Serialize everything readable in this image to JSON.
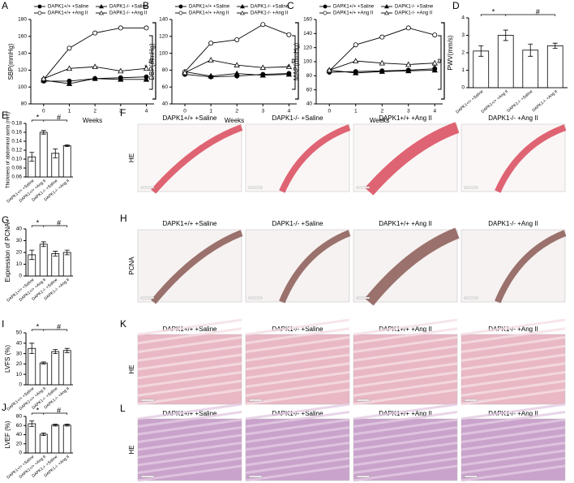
{
  "chart_data": [
    {
      "type": "line",
      "panel": "A",
      "y_label": "SBP(mmHg)",
      "x_label": "Weeks",
      "x": [
        0,
        1,
        2,
        3,
        4
      ],
      "xlim": [
        -0.5,
        4.3
      ],
      "xticks": [
        0,
        1,
        2,
        3,
        4
      ],
      "ylim": [
        80,
        180
      ],
      "yticks": [
        80,
        100,
        120,
        140,
        160,
        180
      ],
      "series": [
        {
          "name": "DAPK1+/+ +Saline",
          "color": "#000000",
          "marker": "filled-circle",
          "values": [
            107,
            107,
            110,
            111,
            112
          ]
        },
        {
          "name": "DAPK1-/- +Saline",
          "color": "#000000",
          "marker": "filled-triangle",
          "values": [
            108,
            104,
            110,
            109,
            109
          ]
        },
        {
          "name": "DAPK1+/+ +Ang II",
          "color": "#000000",
          "marker": "open-circle",
          "values": [
            109,
            146,
            164,
            170,
            170
          ]
        },
        {
          "name": "DAPK1-/- +Ang II",
          "color": "#000000",
          "marker": "open-triangle",
          "values": [
            110,
            122,
            124,
            119,
            122
          ]
        }
      ],
      "annotations": [
        "*",
        "#"
      ]
    },
    {
      "type": "line",
      "panel": "B",
      "y_label": "DBP(mmHg)",
      "x_label": "Weeks",
      "x": [
        0,
        1,
        2,
        3,
        4
      ],
      "xlim": [
        -0.5,
        4.3
      ],
      "xticks": [
        0,
        1,
        2,
        3,
        4
      ],
      "ylim": [
        40,
        140
      ],
      "yticks": [
        40,
        60,
        80,
        100,
        120,
        140
      ],
      "series": [
        {
          "name": "DAPK1+/+ +Saline",
          "color": "#000000",
          "marker": "filled-circle",
          "values": [
            75,
            72,
            73,
            75,
            76
          ]
        },
        {
          "name": "DAPK1-/- +Saline",
          "color": "#000000",
          "marker": "filled-triangle",
          "values": [
            78,
            73,
            76,
            74,
            75
          ]
        },
        {
          "name": "DAPK1+/+ +Ang II",
          "color": "#000000",
          "marker": "open-circle",
          "values": [
            78,
            112,
            116,
            134,
            122
          ]
        },
        {
          "name": "DAPK1-/- +Ang II",
          "color": "#000000",
          "marker": "open-triangle",
          "values": [
            77,
            92,
            86,
            83,
            84
          ]
        }
      ],
      "annotations": [
        "*",
        "#"
      ]
    },
    {
      "type": "line",
      "panel": "C",
      "y_label": "MAP(mmHg)",
      "x_label": "Weeks",
      "x": [
        0,
        1,
        2,
        3,
        4
      ],
      "xlim": [
        -0.5,
        4.3
      ],
      "xticks": [
        0,
        1,
        2,
        3,
        4
      ],
      "ylim": [
        40,
        160
      ],
      "yticks": [
        40,
        60,
        80,
        100,
        120,
        140,
        160
      ],
      "series": [
        {
          "name": "DAPK1+/+ +Saline",
          "color": "#000000",
          "marker": "filled-circle",
          "values": [
            85,
            86,
            87,
            88,
            90
          ]
        },
        {
          "name": "DAPK1-/- +Saline",
          "color": "#000000",
          "marker": "filled-triangle",
          "values": [
            88,
            84,
            86,
            87,
            88
          ]
        },
        {
          "name": "DAPK1+/+ +Ang II",
          "color": "#000000",
          "marker": "open-circle",
          "values": [
            87,
            124,
            135,
            148,
            138
          ]
        },
        {
          "name": "DAPK1-/- +Ang II",
          "color": "#000000",
          "marker": "open-triangle",
          "values": [
            88,
            101,
            98,
            96,
            98
          ]
        }
      ],
      "annotations": [
        "*",
        "#"
      ]
    },
    {
      "type": "bar",
      "panel": "D",
      "y_label": "PWV(mm/s)",
      "categories": [
        "DAPK1+/+ +Saline",
        "DAPK1+/+ +Ang II",
        "DAPK1-/- +Saline",
        "DAPK1-/- +Ang II"
      ],
      "values": [
        2.1,
        3.0,
        2.15,
        2.4
      ],
      "errors": [
        0.3,
        0.3,
        0.35,
        0.15
      ],
      "color": "#ffffff",
      "ylim": [
        0,
        4
      ],
      "yticks": [
        0,
        1,
        2,
        3,
        4
      ],
      "annotations": [
        "*",
        "#"
      ]
    },
    {
      "type": "bar",
      "panel": "E",
      "y_label": "Thickness of abdominal aorta (mm)",
      "categories": [
        "DAPK1+/+ +Saline",
        "DAPK1+/+ +Ang II",
        "DAPK1-/- +Saline",
        "DAPK1-/- +Ang II"
      ],
      "values": [
        0.105,
        0.16,
        0.113,
        0.13
      ],
      "errors": [
        0.01,
        0.004,
        0.01,
        0.002
      ],
      "color": "#ffffff",
      "ylim": [
        0.06,
        0.18
      ],
      "yticks": [
        0.06,
        0.08,
        {
          "value": 0.1,
          "label": "0.10"
        },
        0.12,
        0.14,
        0.16,
        0.18
      ],
      "annotations": [
        "*",
        "#"
      ]
    },
    {
      "type": "bar",
      "panel": "G",
      "y_label": "Expression of PCNA",
      "categories": [
        "DAPK1+/+ +Saline",
        "DAPK1+/+ +Ang II",
        "DAPK1-/- +Saline",
        "DAPK1-/- +Ang II"
      ],
      "values": [
        18,
        27,
        19,
        20
      ],
      "errors": [
        4,
        2,
        2,
        2
      ],
      "color": "#ffffff",
      "ylim": [
        0,
        40
      ],
      "yticks": [
        0,
        10,
        20,
        30,
        40
      ],
      "annotations": [
        "*",
        "#"
      ]
    },
    {
      "type": "bar",
      "panel": "I",
      "y_label": "LVFS (%)",
      "categories": [
        "DAPK1+/+ +Saline",
        "DAPK1+/+ +Ang II",
        "DAPK1-/- +Saline",
        "DAPK1-/- +Ang II"
      ],
      "values": [
        35,
        21,
        32,
        33
      ],
      "errors": [
        5,
        1,
        2,
        2
      ],
      "color": "#ffffff",
      "ylim": [
        0,
        50
      ],
      "yticks": [
        0,
        10,
        20,
        30,
        40,
        50
      ],
      "annotations": [
        "*",
        "#"
      ]
    },
    {
      "type": "bar",
      "panel": "J",
      "y_label": "LVEF (%)",
      "categories": [
        "DAPK1+/+ +Saline",
        "DAPK1+/+ +Ang II",
        "DAPK1-/- +Saline",
        "DAPK1-/- +Ang II"
      ],
      "values": [
        64,
        41,
        61,
        61
      ],
      "errors": [
        6,
        3,
        2,
        2
      ],
      "color": "#ffffff",
      "ylim": [
        0,
        80
      ],
      "yticks": [
        0,
        20,
        40,
        60,
        80
      ],
      "annotations": [
        "*",
        "#"
      ]
    }
  ],
  "image_panels": [
    {
      "panel": "F",
      "stain": "HE",
      "titles": [
        "DAPK1+/+ +Saline",
        "DAPK1-/- +Saline",
        "DAPK1+/+ +Ang II",
        "DAPK1-/- +Ang II"
      ]
    },
    {
      "panel": "H",
      "stain": "PCNA",
      "titles": [
        "DAPK1+/+ +Saline",
        "DAPK1-/- +Saline",
        "DAPK1+/+ +Ang II",
        "DAPK1-/- +Ang II"
      ]
    },
    {
      "panel": "K",
      "stain": "HE",
      "titles": [
        "DAPK1+/+ +Saline",
        "DAPK1-/- +Saline",
        "DAPK1+/+ +Ang II",
        "DAPK1-/- +Ang II"
      ]
    },
    {
      "panel": "L",
      "stain": "HE",
      "titles": [
        "DAPK1+/+ +Saline",
        "DAPK1-/- +Saline",
        "DAPK1+/+ +Ang II",
        "DAPK1-/- +Ang II"
      ]
    }
  ]
}
